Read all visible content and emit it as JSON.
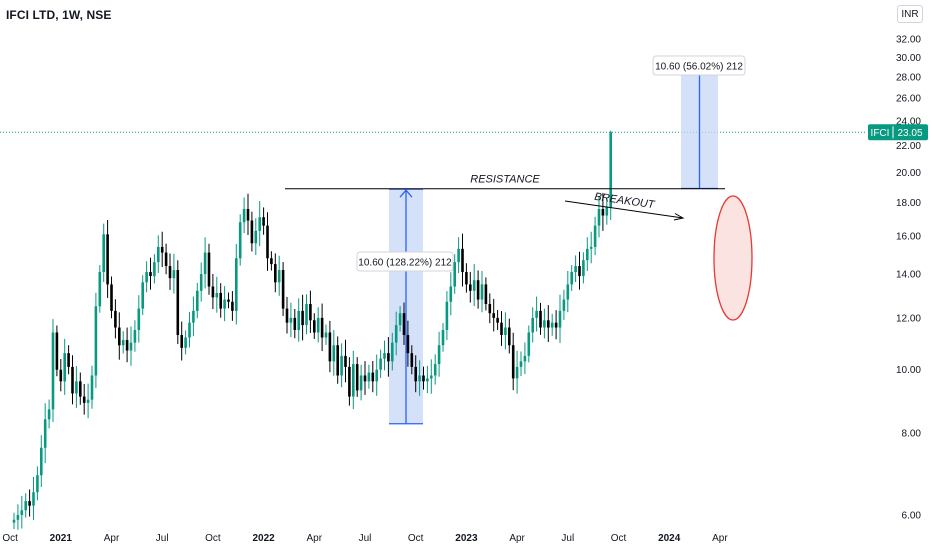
{
  "header": {
    "title": "IFCI LTD, 1W, NSE",
    "currency": "INR"
  },
  "price_tag": {
    "symbol": "IFCI",
    "value": "23.05",
    "color": "#089981"
  },
  "colors": {
    "up": "#089981",
    "down": "#000000",
    "measure_fill": "#c7d7f7",
    "measure_line": "#2962ff",
    "highlight": "#e53935",
    "last_price_line": "#089981"
  },
  "chart_data": {
    "type": "candlestick",
    "title": "IFCI LTD, 1W, NSE",
    "yscale": "log",
    "ylim": [
      5.7,
      34.5
    ],
    "yticks": [
      "6.00",
      "8.00",
      "10.00",
      "12.00",
      "14.00",
      "16.00",
      "18.00",
      "20.00",
      "22.00",
      "24.00",
      "26.00",
      "28.00",
      "30.00",
      "32.00"
    ],
    "xticks": [
      {
        "label": "Oct",
        "bar": -1,
        "year": false
      },
      {
        "label": "2021",
        "bar": 12,
        "year": true
      },
      {
        "label": "Apr",
        "bar": 25,
        "year": false
      },
      {
        "label": "Jul",
        "bar": 38,
        "year": false
      },
      {
        "label": "Oct",
        "bar": 51,
        "year": false
      },
      {
        "label": "2022",
        "bar": 64,
        "year": true
      },
      {
        "label": "Apr",
        "bar": 77,
        "year": false
      },
      {
        "label": "Jul",
        "bar": 90,
        "year": false
      },
      {
        "label": "Oct",
        "bar": 103,
        "year": false
      },
      {
        "label": "2023",
        "bar": 116,
        "year": true
      },
      {
        "label": "Apr",
        "bar": 129,
        "year": false
      },
      {
        "label": "Jul",
        "bar": 142,
        "year": false
      },
      {
        "label": "Oct",
        "bar": 155,
        "year": false
      },
      {
        "label": "2024",
        "bar": 168,
        "year": true
      },
      {
        "label": "Apr",
        "bar": 181,
        "year": false
      }
    ],
    "closes": [
      5.9,
      6.0,
      6.1,
      6.3,
      6.2,
      6.5,
      6.9,
      7.6,
      8.4,
      8.7,
      11.4,
      10.0,
      9.6,
      10.6,
      10.1,
      9.2,
      9.6,
      9.1,
      8.9,
      9.0,
      9.8,
      12.5,
      14.1,
      16.1,
      13.5,
      12.3,
      11.6,
      10.9,
      11.1,
      10.7,
      11.0,
      11.5,
      12.4,
      13.6,
      14.1,
      13.9,
      14.6,
      15.4,
      15.1,
      14.4,
      13.8,
      14.2,
      11.3,
      10.8,
      11.2,
      11.8,
      12.3,
      13.2,
      14.0,
      15.1,
      13.4,
      12.9,
      13.1,
      12.4,
      12.8,
      12.7,
      12.3,
      14.8,
      16.8,
      17.6,
      16.9,
      15.6,
      16.3,
      17.1,
      16.6,
      14.8,
      14.5,
      13.6,
      14.2,
      12.4,
      11.8,
      12.0,
      11.5,
      12.3,
      11.7,
      12.6,
      11.9,
      11.4,
      12.0,
      11.2,
      11.4,
      10.3,
      10.9,
      9.8,
      10.5,
      10.1,
      9.1,
      10.2,
      9.3,
      9.8,
      9.6,
      9.9,
      9.6,
      10.0,
      10.4,
      10.6,
      10.3,
      11.0,
      11.7,
      12.2,
      11.3,
      10.6,
      10.1,
      9.6,
      9.8,
      9.6,
      9.7,
      9.8,
      10.2,
      10.9,
      11.5,
      12.7,
      13.4,
      14.6,
      15.3,
      14.1,
      13.5,
      13.2,
      13.7,
      12.8,
      13.5,
      12.6,
      12.2,
      12.0,
      11.8,
      11.3,
      11.6,
      10.9,
      9.7,
      10.1,
      10.3,
      10.5,
      11.4,
      12.0,
      12.3,
      11.6,
      11.9,
      11.6,
      11.8,
      11.6,
      12.3,
      12.8,
      13.5,
      14.1,
      14.4,
      13.9,
      14.7,
      15.3,
      15.4,
      16.6,
      17.6,
      17.2,
      17.7,
      23.05
    ],
    "annotations": [
      {
        "type": "horizontal-line",
        "label": "RESISTANCE",
        "y": 18.9
      },
      {
        "type": "price-range",
        "label": "10.60 (128.22%) 212",
        "from": 8.27,
        "to": 18.87
      },
      {
        "type": "price-range",
        "label": "10.60 (56.02%) 212",
        "from": 18.92,
        "to": 29.52
      },
      {
        "type": "arrow",
        "label": "BREAKOUT"
      },
      {
        "type": "ellipse",
        "label": ""
      }
    ]
  }
}
